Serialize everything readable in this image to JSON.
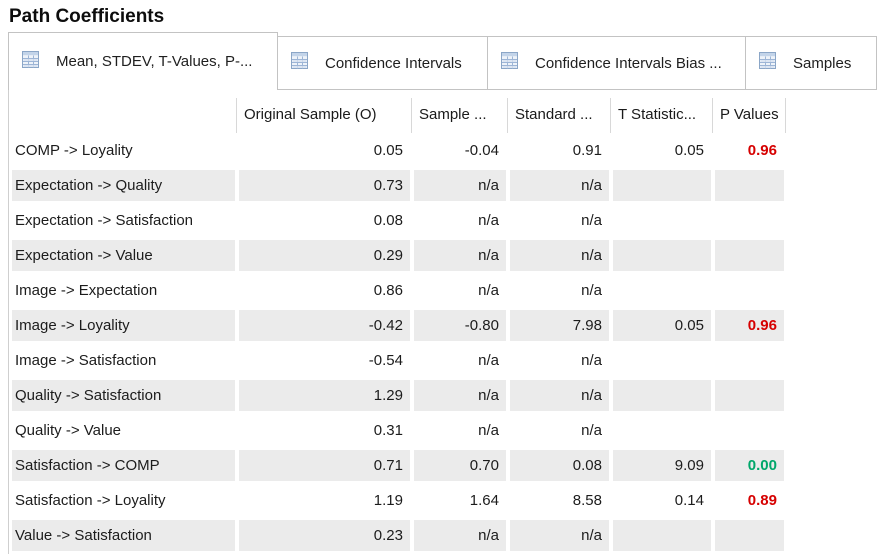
{
  "title": "Path Coefficients",
  "tabs": [
    {
      "label": "Mean, STDEV, T-Values, P-...",
      "active": true
    },
    {
      "label": "Confidence Intervals",
      "active": false
    },
    {
      "label": "Confidence Intervals Bias ...",
      "active": false
    },
    {
      "label": "Samples",
      "active": false
    }
  ],
  "table": {
    "columns": [
      "",
      "Original Sample (O)",
      "Sample ...",
      "Standard ...",
      "T Statistic...",
      "P Values"
    ],
    "rows": [
      {
        "label": "COMP -> Loyality",
        "values": [
          "0.05",
          "-0.04",
          "0.91",
          "0.05",
          "0.96"
        ],
        "p_style": "red"
      },
      {
        "label": "Expectation -> Quality",
        "values": [
          "0.73",
          "n/a",
          "n/a",
          "",
          ""
        ],
        "p_style": null
      },
      {
        "label": "Expectation -> Satisfaction",
        "values": [
          "0.08",
          "n/a",
          "n/a",
          "",
          ""
        ],
        "p_style": null
      },
      {
        "label": "Expectation -> Value",
        "values": [
          "0.29",
          "n/a",
          "n/a",
          "",
          ""
        ],
        "p_style": null
      },
      {
        "label": "Image -> Expectation",
        "values": [
          "0.86",
          "n/a",
          "n/a",
          "",
          ""
        ],
        "p_style": null
      },
      {
        "label": "Image -> Loyality",
        "values": [
          "-0.42",
          "-0.80",
          "7.98",
          "0.05",
          "0.96"
        ],
        "p_style": "red"
      },
      {
        "label": "Image -> Satisfaction",
        "values": [
          "-0.54",
          "n/a",
          "n/a",
          "",
          ""
        ],
        "p_style": null
      },
      {
        "label": "Quality -> Satisfaction",
        "values": [
          "1.29",
          "n/a",
          "n/a",
          "",
          ""
        ],
        "p_style": null
      },
      {
        "label": "Quality -> Value",
        "values": [
          "0.31",
          "n/a",
          "n/a",
          "",
          ""
        ],
        "p_style": null
      },
      {
        "label": "Satisfaction -> COMP",
        "values": [
          "0.71",
          "0.70",
          "0.08",
          "9.09",
          "0.00"
        ],
        "p_style": "green"
      },
      {
        "label": "Satisfaction -> Loyality",
        "values": [
          "1.19",
          "1.64",
          "8.58",
          "0.14",
          "0.89"
        ],
        "p_style": "red"
      },
      {
        "label": "Value -> Satisfaction",
        "values": [
          "0.23",
          "n/a",
          "n/a",
          "",
          ""
        ],
        "p_style": null
      }
    ]
  },
  "colors": {
    "p_value_bad": "#d60000",
    "p_value_good": "#00a76a",
    "row_alt_background": "#ebebeb",
    "tab_border": "#c3c3c3"
  }
}
